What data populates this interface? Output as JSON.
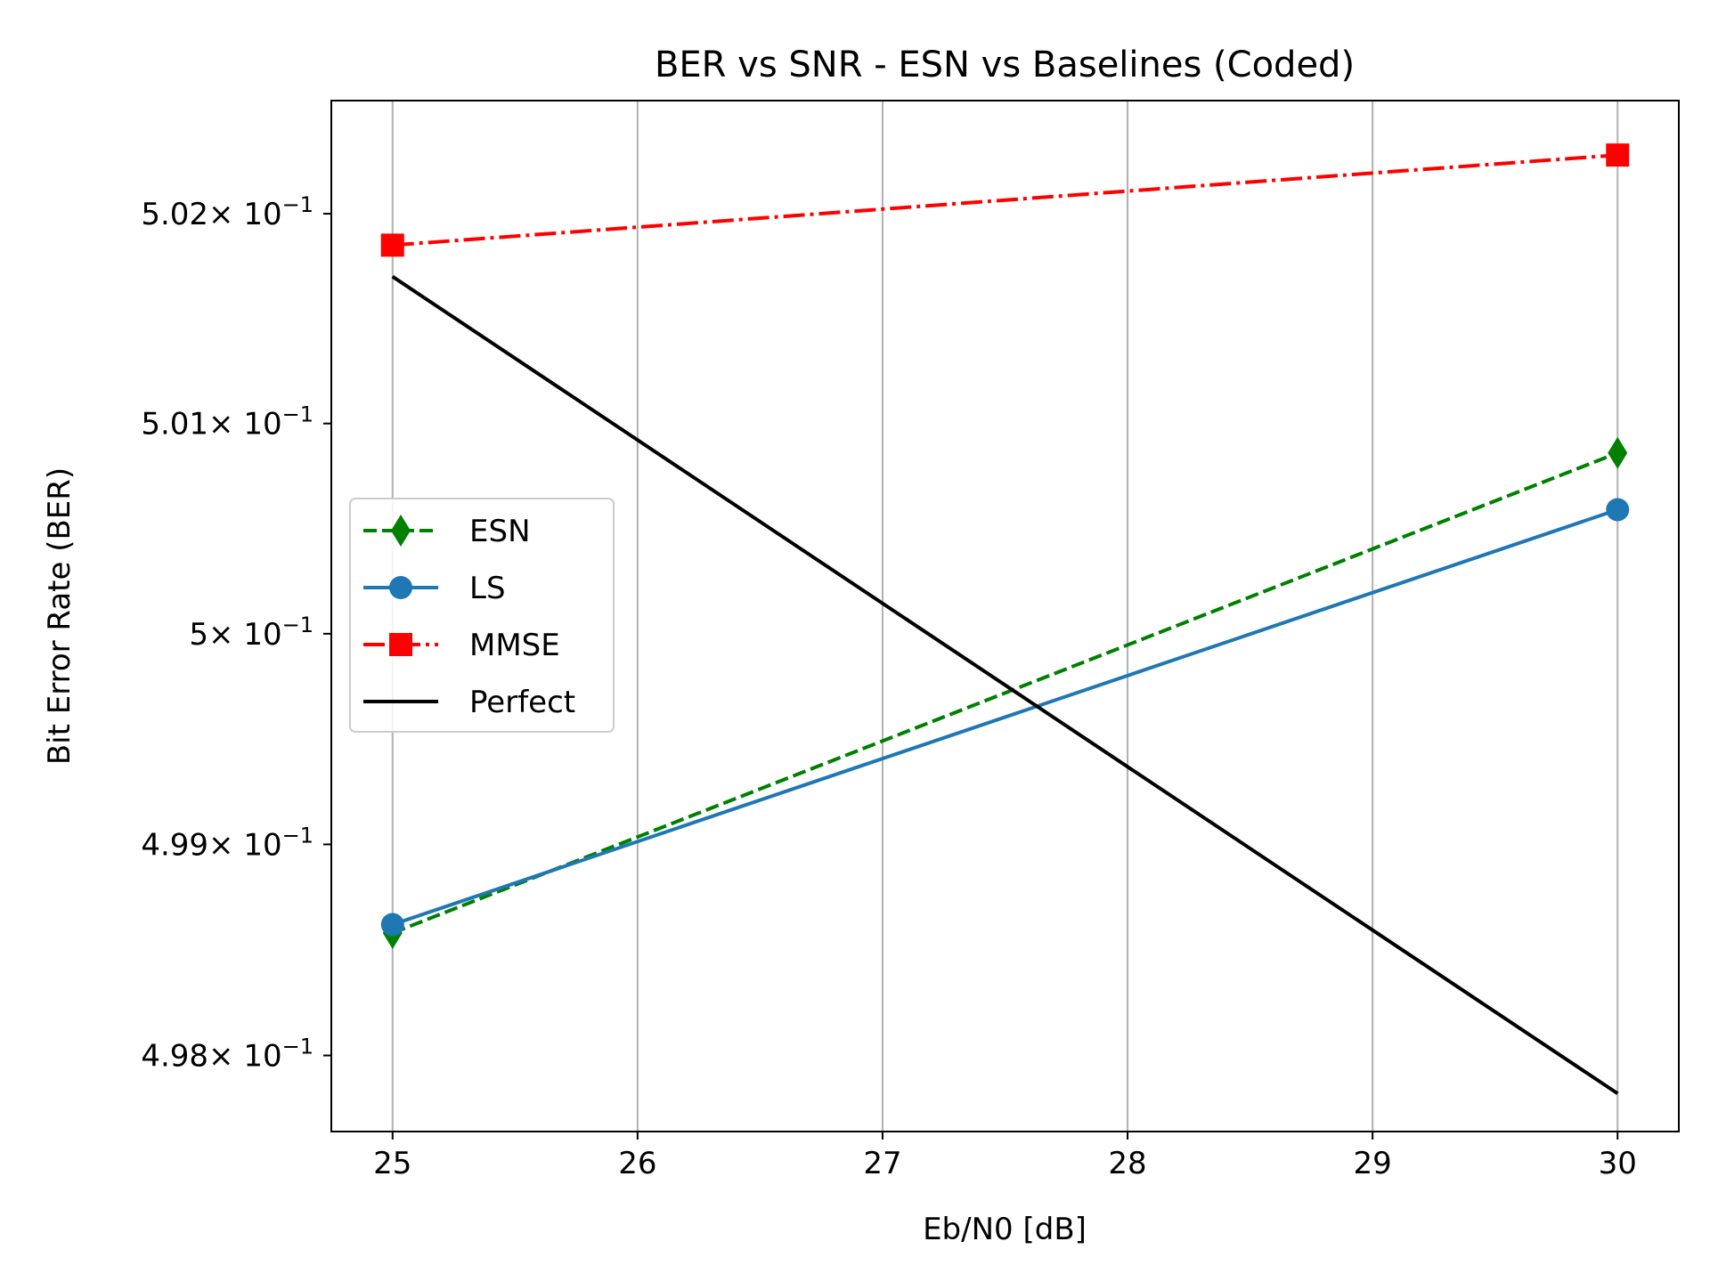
{
  "chart_data": {
    "type": "line",
    "title": "BER vs SNR - ESN vs Baselines (Coded)",
    "xlabel": "Eb/N0 [dB]",
    "ylabel": "Bit Error Rate (BER)",
    "xlim": [
      24.75,
      30.25
    ],
    "ylim": [
      0.49764,
      0.50254
    ],
    "yscale": "log",
    "grid": "x-only",
    "legend_placement": "center-left",
    "x_ticks": [
      {
        "value": 25,
        "label": "25"
      },
      {
        "value": 26,
        "label": "26"
      },
      {
        "value": 27,
        "label": "27"
      },
      {
        "value": 28,
        "label": "28"
      },
      {
        "value": 29,
        "label": "29"
      },
      {
        "value": 30,
        "label": "30"
      }
    ],
    "y_ticks": [
      {
        "value": 0.498,
        "mantissa": "4.98",
        "exponent": "−1"
      },
      {
        "value": 0.499,
        "mantissa": "4.99",
        "exponent": "−1"
      },
      {
        "value": 0.5,
        "mantissa": "5",
        "exponent": "−1"
      },
      {
        "value": 0.501,
        "mantissa": "5.01",
        "exponent": "−1"
      },
      {
        "value": 0.502,
        "mantissa": "5.02",
        "exponent": "−1"
      }
    ],
    "y_tick_base": "× 10",
    "series": [
      {
        "name": "ESN",
        "color": "#008000",
        "dash": "dashed",
        "marker": "diamond",
        "x": [
          25,
          30
        ],
        "y": [
          0.49858,
          0.50086
        ]
      },
      {
        "name": "LS",
        "color": "#1f77b4",
        "dash": "solid",
        "marker": "circle",
        "x": [
          25,
          30
        ],
        "y": [
          0.49862,
          0.50059
        ]
      },
      {
        "name": "MMSE",
        "color": "#ff0000",
        "dash": "dashdot",
        "marker": "square",
        "x": [
          25,
          30
        ],
        "y": [
          0.50185,
          0.50228
        ]
      },
      {
        "name": "Perfect",
        "color": "#000000",
        "dash": "solid",
        "marker": "none",
        "x": [
          25,
          30
        ],
        "y": [
          0.5017,
          0.49782
        ]
      }
    ]
  }
}
